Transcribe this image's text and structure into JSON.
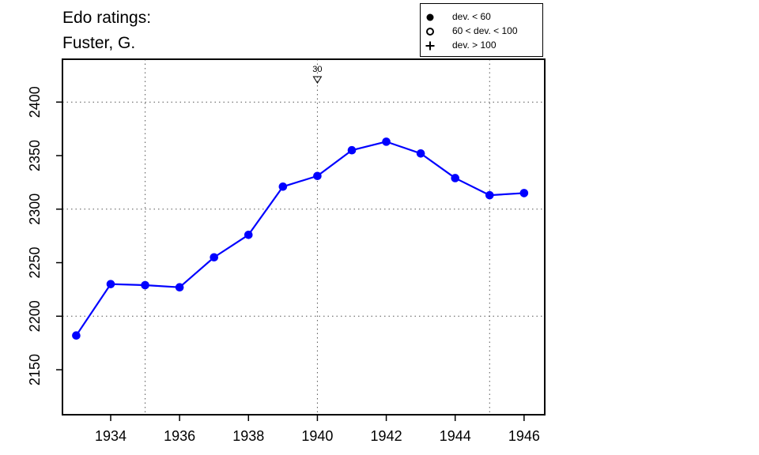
{
  "title_lines": [
    "Edo ratings:",
    "Fuster, G."
  ],
  "legend": [
    {
      "symbol": "filled-circle",
      "label": "dev. < 60"
    },
    {
      "symbol": "open-circle",
      "label": "60 < dev. < 100"
    },
    {
      "symbol": "plus",
      "label": "dev. > 100"
    }
  ],
  "chart_data": {
    "type": "line",
    "title": "Edo ratings: Fuster, G.",
    "xlabel": "",
    "ylabel": "",
    "xlim": [
      1932.6,
      1946.6
    ],
    "ylim": [
      2108,
      2440
    ],
    "x_ticks": [
      1934,
      1936,
      1938,
      1940,
      1942,
      1944,
      1946
    ],
    "y_ticks": [
      2150,
      2200,
      2250,
      2300,
      2350,
      2400
    ],
    "x_grid": [
      1935,
      1940,
      1945
    ],
    "y_grid": [
      2200,
      2300,
      2400
    ],
    "grid": true,
    "legend_position": "top-right",
    "series": [
      {
        "color": "#0000ff",
        "marker": "filled-circle",
        "x": [
          1933,
          1934,
          1935,
          1936,
          1937,
          1938,
          1939,
          1940,
          1941,
          1942,
          1943,
          1944,
          1945,
          1946
        ],
        "y": [
          2182,
          2230,
          2229,
          2227,
          2255,
          2276,
          2321,
          2331,
          2355,
          2363,
          2352,
          2329,
          2313,
          2315
        ]
      }
    ],
    "annotations": [
      {
        "x": 1940,
        "text": "30",
        "marker": "open-triangle-down"
      }
    ]
  }
}
